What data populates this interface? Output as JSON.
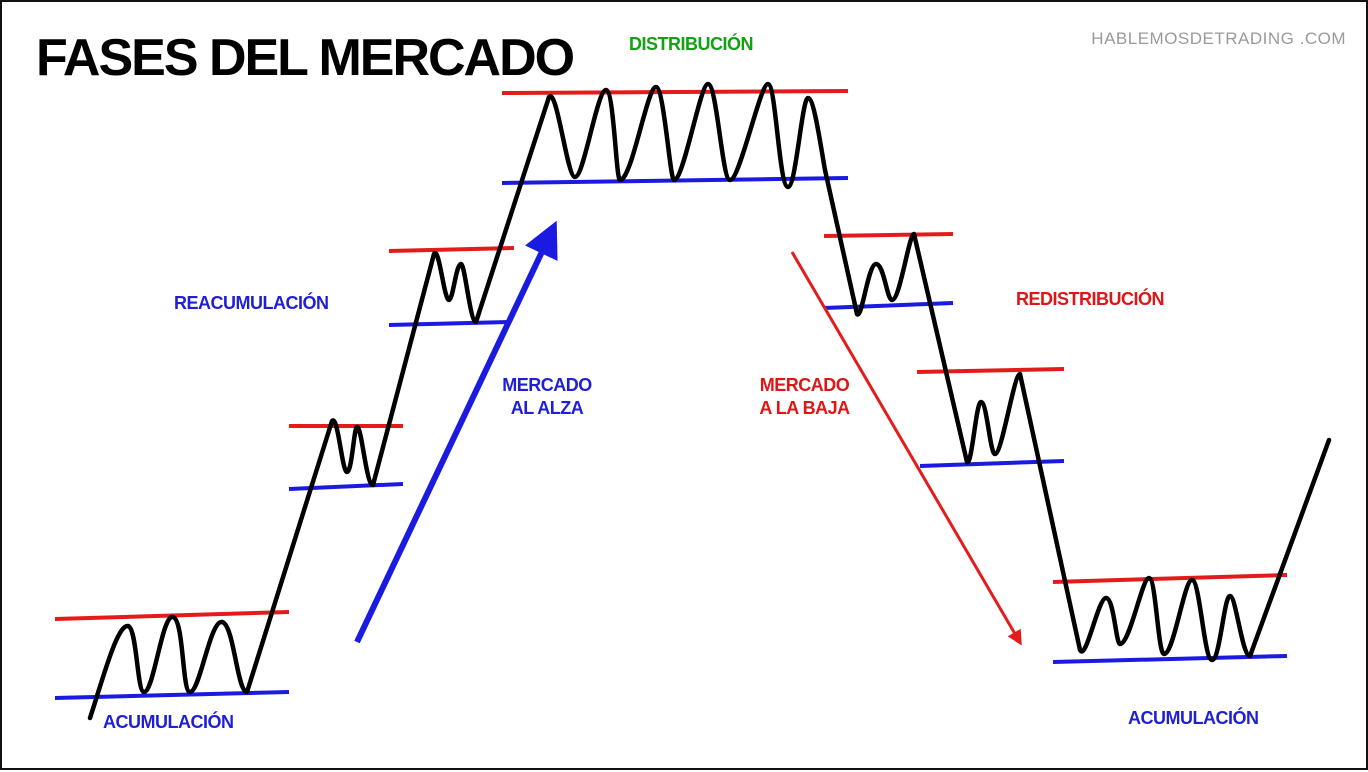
{
  "title": "FASES DEL MERCADO",
  "website": "HABLEMOSDETRADING .COM",
  "labels": {
    "distribucion": "DISTRIBUCIÓN",
    "reacumulacion": "REACUMULACIÓN",
    "redistribucion": "REDISTRIBUCIÓN",
    "mercado_alza_line1": "MERCADO",
    "mercado_alza_line2": "AL ALZA",
    "mercado_baja_line1": "MERCADO",
    "mercado_baja_line2": "A LA BAJA",
    "acumulacion_left": "ACUMULACIÓN",
    "acumulacion_right": "ACUMULACIÓN"
  },
  "colors": {
    "resistance": "#e41b1b",
    "support": "#1a1ae0",
    "price": "#000000",
    "up_arrow": "#1a1ae0",
    "down_arrow": "#e41b1b",
    "distribution_text": "#14a014"
  }
}
